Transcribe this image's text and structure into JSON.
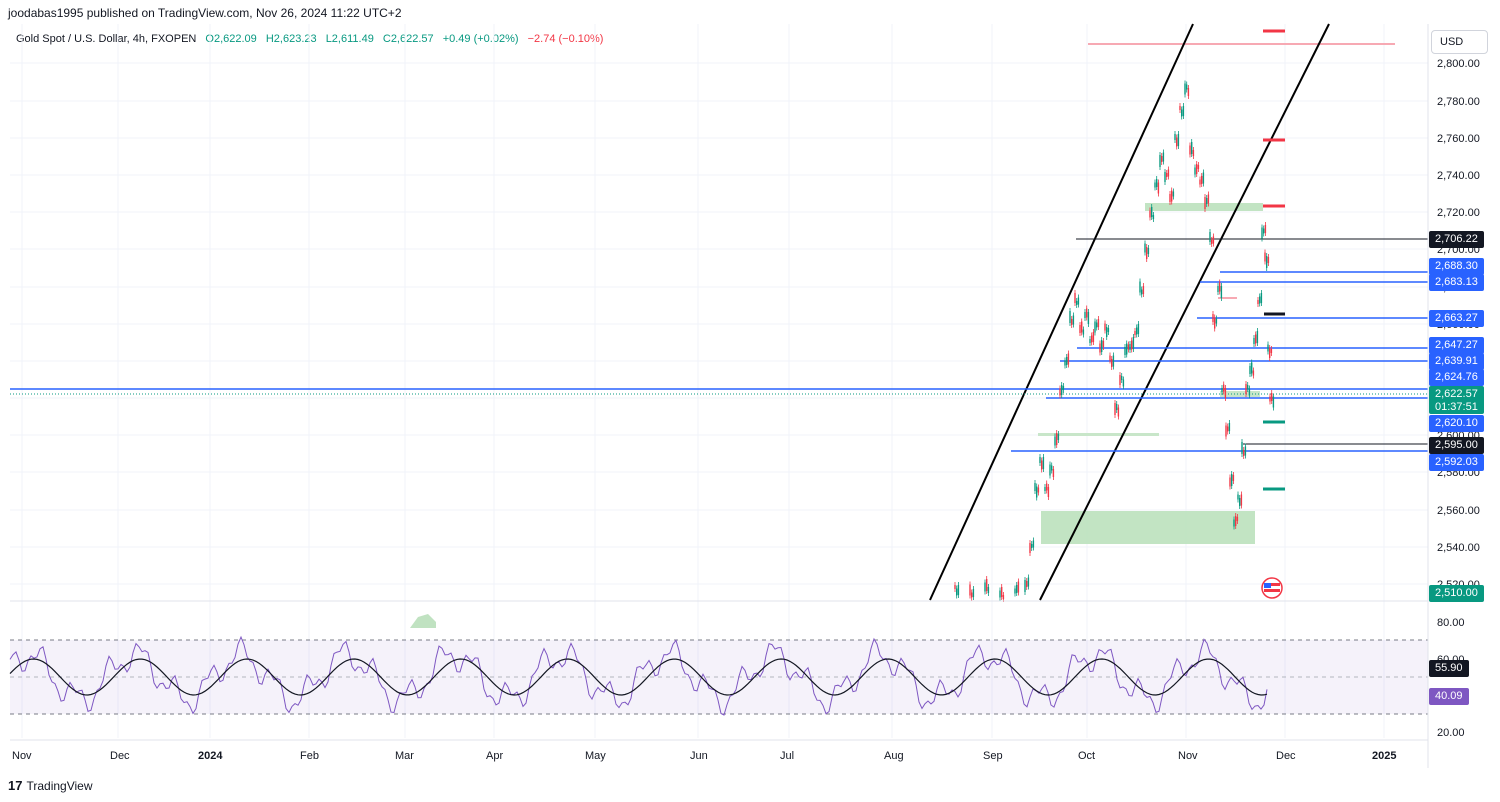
{
  "header": {
    "published": "joodabas1995 published on TradingView.com, Nov 26, 2024 11:22 UTC+2"
  },
  "legend": {
    "symbol": "Gold Spot / U.S. Dollar, 4h, FXOPEN",
    "open": "O2,622.09",
    "high": "H2,623.23",
    "low": "L2,611.49",
    "close": "C2,622.57",
    "change": "+0.49 (+0.02%)",
    "change2": "−2.74 (−0.10%)"
  },
  "currency_button": "USD",
  "price_axis_ticks": [
    "2,800.00",
    "2,780.00",
    "2,760.00",
    "2,740.00",
    "2,720.00",
    "2,700.00",
    "2,680.00",
    "2,660.00",
    "2,640.00",
    "2,620.00",
    "2,600.00",
    "2,580.00",
    "2,560.00",
    "2,540.00",
    "2,520.00"
  ],
  "price_labels": {
    "l2706": "2,706.22",
    "l2688": "2,688.30",
    "l2683": "2,683.13",
    "l2663": "2,663.27",
    "l2647": "2,647.27",
    "l2639": "2,639.91",
    "l2624": "2,624.76",
    "l2622": "2,622.57",
    "countdown": "01:37:51",
    "l2620": "2,620.10",
    "l2600": "2,600.00",
    "l2595": "2,595.00",
    "l2592": "2,592.03",
    "l2510": "2,510.00"
  },
  "rsi_axis": [
    "80.00",
    "60.00",
    "40.00",
    "20.00"
  ],
  "rsi_labels": {
    "ma": "55.90",
    "rsi": "40.09"
  },
  "time_axis": [
    "Nov",
    "Dec",
    "2024",
    "Feb",
    "Mar",
    "Apr",
    "May",
    "Jun",
    "Jul",
    "Aug",
    "Sep",
    "Oct",
    "Nov",
    "Dec",
    "2025"
  ],
  "footer": {
    "brand": "TradingView",
    "mark": "17"
  },
  "colors": {
    "up": "#089981",
    "down": "#f23645",
    "blue_line": "#2962ff",
    "rsi": "#7e57c2",
    "label_blue": "#2962ff",
    "label_green": "#089981",
    "label_dark": "#131722",
    "label_purple": "#7e57c2"
  }
}
